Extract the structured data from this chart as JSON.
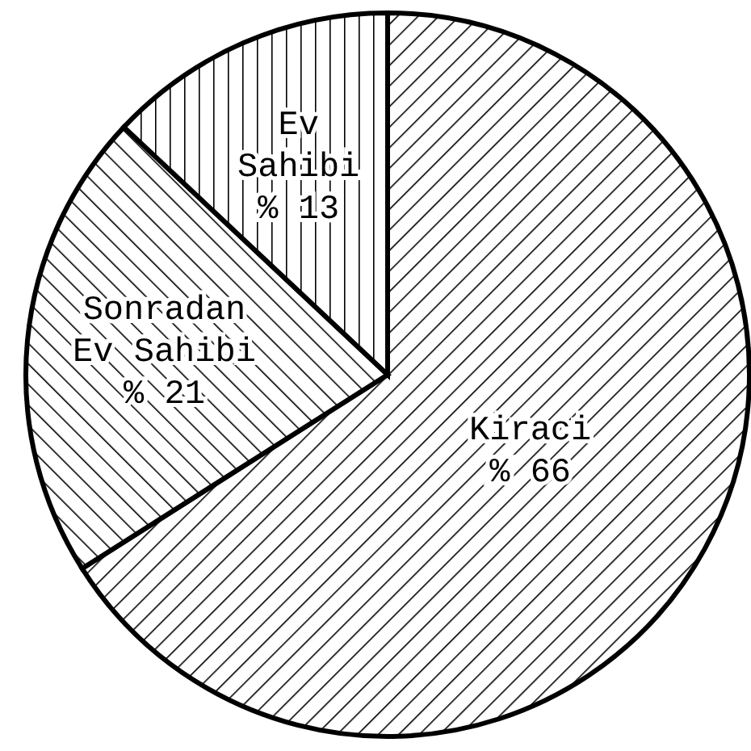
{
  "chart_data": {
    "type": "pie",
    "categories": [
      "Kiraci",
      "Sonradan\nEv Sahibi",
      "Ev\nSahibi"
    ],
    "values": [
      66,
      21,
      13
    ],
    "value_labels": [
      "% 66",
      "% 21",
      "% 13"
    ],
    "colors": [
      "#000000",
      "#000000",
      "#000000"
    ]
  }
}
